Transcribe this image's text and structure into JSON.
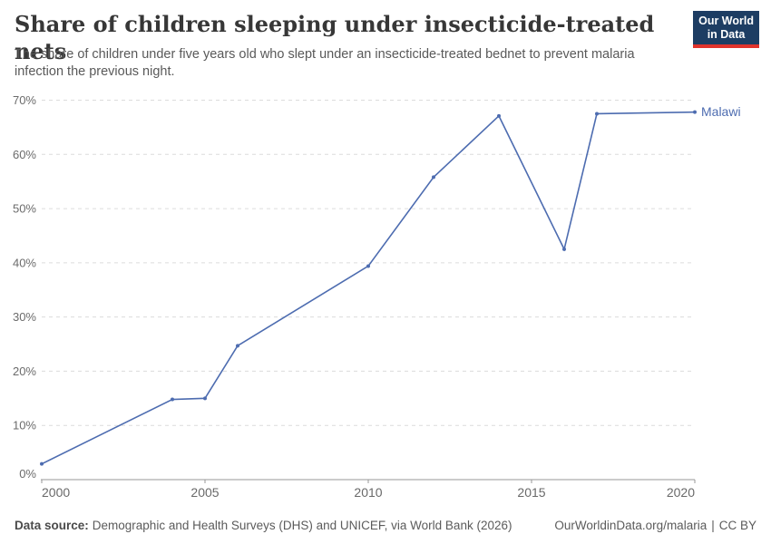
{
  "header": {
    "title": "Share of children sleeping under insecticide-treated nets",
    "subtitle": "The share of children under five years old who slept under an insecticide-treated bednet to prevent malaria infection the previous night.",
    "logo": {
      "line1": "Our World",
      "line2": "in Data"
    }
  },
  "chart_data": {
    "type": "line",
    "title": "Share of children sleeping under insecticide-treated nets",
    "xlabel": "",
    "ylabel": "",
    "xlim": [
      2000,
      2020
    ],
    "ylim": [
      0,
      70
    ],
    "x_ticks": [
      2000,
      2005,
      2010,
      2015,
      2020
    ],
    "y_ticks": [
      0,
      10,
      20,
      30,
      40,
      50,
      60,
      70
    ],
    "y_tick_suffix": "%",
    "grid": "horizontal-dashed",
    "legend_position": "end-of-line-label",
    "series": [
      {
        "name": "Malawi",
        "color": "#4d6cb0",
        "points": [
          [
            2000,
            2.9
          ],
          [
            2004,
            14.8
          ],
          [
            2005,
            15.0
          ],
          [
            2006,
            24.7
          ],
          [
            2010,
            39.4
          ],
          [
            2012,
            55.8
          ],
          [
            2014,
            67.1
          ],
          [
            2016,
            42.5
          ],
          [
            2017,
            67.5
          ],
          [
            2020,
            67.8
          ]
        ]
      }
    ]
  },
  "footer": {
    "source_label": "Data source:",
    "source_text": "Demographic and Health Surveys (DHS) and UNICEF, via World Bank (2026)",
    "url": "OurWorldinData.org/malaria",
    "separator": "|",
    "license": "CC BY"
  },
  "colors": {
    "line": "#4d6cb0",
    "logo_background": "#1d3d63",
    "logo_accent": "#e0332c",
    "title_text": "#373737",
    "subtitle_text": "#595959",
    "tick_text": "#6b6b6b",
    "gridline": "#dcdcdc",
    "axis": "#979797"
  }
}
